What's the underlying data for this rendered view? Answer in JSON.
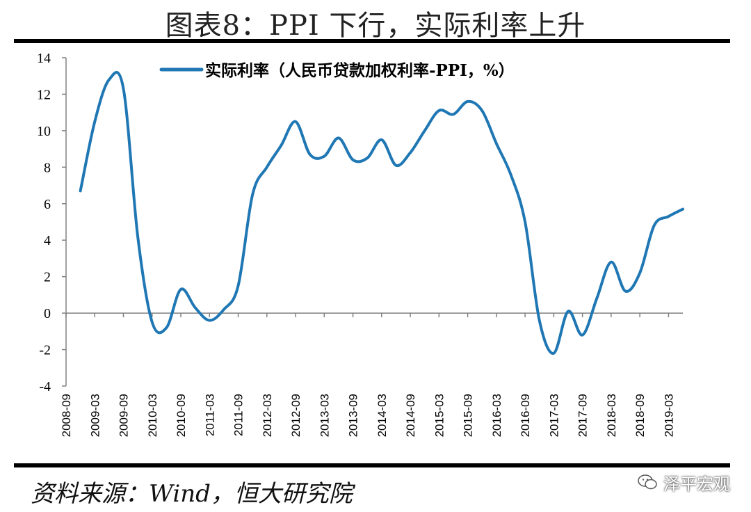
{
  "figure": {
    "title": "图表8：PPI 下行，实际利率上升",
    "source": "资料来源：Wind，恒大研究院",
    "watermark": "泽平宏观"
  },
  "colors": {
    "series": "#1f77b4",
    "axis": "#808080",
    "rule": "#000000"
  },
  "icons": {
    "watermark": "wechat-icon"
  },
  "chart_data": {
    "type": "line",
    "title": "",
    "xlabel": "",
    "ylabel": "",
    "ylim": [
      -4,
      14
    ],
    "yticks": [
      "14",
      "12",
      "10",
      "8",
      "6",
      "4",
      "2",
      "0",
      "-2",
      "-4"
    ],
    "xticks": [
      "2008-09",
      "2009-03",
      "2009-09",
      "2010-03",
      "2010-09",
      "2011-03",
      "2011-09",
      "2012-03",
      "2012-09",
      "2013-03",
      "2013-09",
      "2014-03",
      "2014-09",
      "2015-03",
      "2015-09",
      "2016-03",
      "2016-09",
      "2017-03",
      "2017-09",
      "2018-03",
      "2018-09",
      "2019-03"
    ],
    "grid": false,
    "legend_position": "top",
    "series": [
      {
        "name": "实际利率（人民币贷款加权利率-PPI，%）",
        "x": [
          "2008-12",
          "2009-03",
          "2009-06",
          "2009-09",
          "2009-12",
          "2010-03",
          "2010-06",
          "2010-09",
          "2010-12",
          "2011-03",
          "2011-06",
          "2011-09",
          "2011-12",
          "2012-03",
          "2012-06",
          "2012-09",
          "2012-12",
          "2013-03",
          "2013-06",
          "2013-09",
          "2013-12",
          "2014-03",
          "2014-06",
          "2014-09",
          "2014-12",
          "2015-03",
          "2015-06",
          "2015-09",
          "2015-12",
          "2016-03",
          "2016-06",
          "2016-09",
          "2016-12",
          "2017-03",
          "2017-06",
          "2017-09",
          "2017-12",
          "2018-03",
          "2018-06",
          "2018-09",
          "2018-12",
          "2019-03",
          "2019-06"
        ],
        "values": [
          6.7,
          10.5,
          12.8,
          12.3,
          4.2,
          -0.5,
          -0.8,
          1.3,
          0.3,
          -0.4,
          0.2,
          1.5,
          6.5,
          8.0,
          9.2,
          10.5,
          8.7,
          8.6,
          9.6,
          8.4,
          8.5,
          9.5,
          8.1,
          8.8,
          10.0,
          11.1,
          10.9,
          11.6,
          11.1,
          9.3,
          7.6,
          5.0,
          -0.4,
          -2.2,
          0.1,
          -1.2,
          0.8,
          2.8,
          1.2,
          2.2,
          4.8,
          5.3,
          5.7
        ]
      }
    ]
  }
}
